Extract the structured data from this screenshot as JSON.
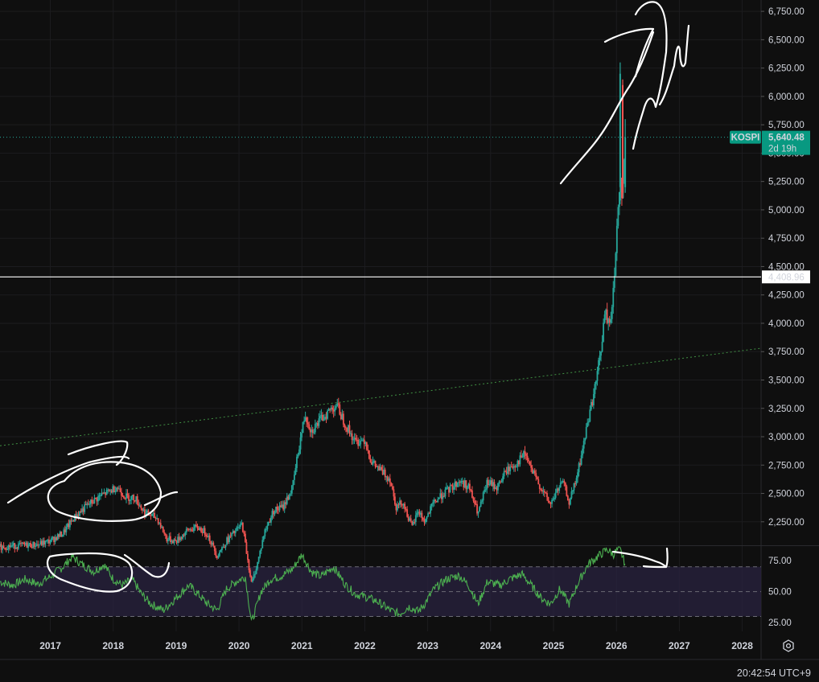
{
  "chart_data": {
    "type": "candlestick",
    "symbol": "KOSPI",
    "last_price": "5,640.48",
    "countdown": "2d 19h",
    "horizontal_line_label": "4,408.96",
    "horizontal_line_value": 4408.96,
    "ylim": [
      2050,
      6850
    ],
    "y_ticks": [
      "6,750.00",
      "6,500.00",
      "6,250.00",
      "6,000.00",
      "5,750.00",
      "5,500.00",
      "5,250.00",
      "5,000.00",
      "4,750.00",
      "4,500.00",
      "4,250.00",
      "4,000.00",
      "3,750.00",
      "3,500.00",
      "3,250.00",
      "3,000.00",
      "2,750.00",
      "2,500.00",
      "2,250.00"
    ],
    "x_ticks": [
      "2017",
      "2018",
      "2019",
      "2020",
      "2021",
      "2022",
      "2023",
      "2024",
      "2025",
      "2026",
      "2027",
      "2028"
    ],
    "trendline": [
      [
        2016.2,
        2920
      ],
      [
        2028.3,
        3780
      ]
    ],
    "price_path": [
      [
        2016.2,
        2030
      ],
      [
        2016.5,
        2040
      ],
      [
        2016.8,
        2050
      ],
      [
        2017.0,
        2080
      ],
      [
        2017.2,
        2150
      ],
      [
        2017.4,
        2300
      ],
      [
        2017.6,
        2400
      ],
      [
        2017.8,
        2480
      ],
      [
        2017.95,
        2520
      ],
      [
        2018.05,
        2560
      ],
      [
        2018.2,
        2470
      ],
      [
        2018.35,
        2460
      ],
      [
        2018.5,
        2330
      ],
      [
        2018.7,
        2280
      ],
      [
        2018.85,
        2100
      ],
      [
        2019.0,
        2080
      ],
      [
        2019.2,
        2180
      ],
      [
        2019.35,
        2200
      ],
      [
        2019.5,
        2140
      ],
      [
        2019.65,
        1950
      ],
      [
        2019.8,
        2080
      ],
      [
        2019.95,
        2170
      ],
      [
        2020.05,
        2230
      ],
      [
        2020.2,
        1700
      ],
      [
        2020.3,
        1900
      ],
      [
        2020.4,
        2150
      ],
      [
        2020.55,
        2350
      ],
      [
        2020.7,
        2380
      ],
      [
        2020.85,
        2550
      ],
      [
        2020.95,
        2900
      ],
      [
        2021.05,
        3200
      ],
      [
        2021.15,
        3050
      ],
      [
        2021.3,
        3150
      ],
      [
        2021.45,
        3240
      ],
      [
        2021.55,
        3280
      ],
      [
        2021.7,
        3100
      ],
      [
        2021.85,
        2950
      ],
      [
        2022.0,
        2980
      ],
      [
        2022.1,
        2780
      ],
      [
        2022.25,
        2700
      ],
      [
        2022.4,
        2630
      ],
      [
        2022.5,
        2380
      ],
      [
        2022.6,
        2430
      ],
      [
        2022.75,
        2200
      ],
      [
        2022.85,
        2350
      ],
      [
        2022.95,
        2250
      ],
      [
        2023.1,
        2420
      ],
      [
        2023.25,
        2500
      ],
      [
        2023.4,
        2560
      ],
      [
        2023.5,
        2610
      ],
      [
        2023.65,
        2560
      ],
      [
        2023.8,
        2320
      ],
      [
        2023.95,
        2600
      ],
      [
        2024.1,
        2550
      ],
      [
        2024.25,
        2700
      ],
      [
        2024.4,
        2760
      ],
      [
        2024.55,
        2850
      ],
      [
        2024.65,
        2700
      ],
      [
        2024.8,
        2550
      ],
      [
        2024.95,
        2400
      ],
      [
        2025.05,
        2520
      ],
      [
        2025.15,
        2600
      ],
      [
        2025.25,
        2420
      ],
      [
        2025.35,
        2600
      ],
      [
        2025.45,
        2850
      ],
      [
        2025.55,
        3150
      ],
      [
        2025.65,
        3400
      ],
      [
        2025.75,
        3750
      ],
      [
        2025.82,
        4100
      ],
      [
        2025.88,
        3980
      ],
      [
        2025.93,
        4150
      ],
      [
        2025.97,
        4400
      ],
      [
        2026.02,
        5000
      ],
      [
        2026.06,
        5300
      ],
      [
        2026.1,
        5100
      ],
      [
        2026.14,
        5640
      ]
    ],
    "rsi": {
      "ylim": [
        18,
        86
      ],
      "upper_band": 70,
      "lower_band": 30,
      "mid_line": 50,
      "ticks": [
        "75.00",
        "50.00",
        "25.00"
      ],
      "path": [
        [
          2016.2,
          58
        ],
        [
          2016.4,
          55
        ],
        [
          2016.6,
          60
        ],
        [
          2016.8,
          56
        ],
        [
          2017.0,
          62
        ],
        [
          2017.2,
          70
        ],
        [
          2017.35,
          78
        ],
        [
          2017.5,
          72
        ],
        [
          2017.7,
          66
        ],
        [
          2017.85,
          72
        ],
        [
          2018.0,
          60
        ],
        [
          2018.15,
          55
        ],
        [
          2018.3,
          60
        ],
        [
          2018.45,
          48
        ],
        [
          2018.6,
          40
        ],
        [
          2018.8,
          35
        ],
        [
          2019.0,
          45
        ],
        [
          2019.2,
          55
        ],
        [
          2019.35,
          48
        ],
        [
          2019.5,
          40
        ],
        [
          2019.65,
          35
        ],
        [
          2019.8,
          52
        ],
        [
          2019.95,
          58
        ],
        [
          2020.1,
          62
        ],
        [
          2020.2,
          25
        ],
        [
          2020.35,
          50
        ],
        [
          2020.5,
          60
        ],
        [
          2020.65,
          62
        ],
        [
          2020.85,
          68
        ],
        [
          2021.0,
          80
        ],
        [
          2021.15,
          66
        ],
        [
          2021.3,
          62
        ],
        [
          2021.5,
          70
        ],
        [
          2021.7,
          55
        ],
        [
          2021.85,
          48
        ],
        [
          2022.0,
          46
        ],
        [
          2022.2,
          42
        ],
        [
          2022.4,
          35
        ],
        [
          2022.55,
          32
        ],
        [
          2022.7,
          38
        ],
        [
          2022.85,
          34
        ],
        [
          2022.95,
          40
        ],
        [
          2023.1,
          52
        ],
        [
          2023.3,
          60
        ],
        [
          2023.5,
          63
        ],
        [
          2023.65,
          55
        ],
        [
          2023.8,
          40
        ],
        [
          2023.95,
          58
        ],
        [
          2024.15,
          55
        ],
        [
          2024.3,
          60
        ],
        [
          2024.5,
          64
        ],
        [
          2024.6,
          58
        ],
        [
          2024.8,
          45
        ],
        [
          2024.95,
          40
        ],
        [
          2025.1,
          52
        ],
        [
          2025.25,
          40
        ],
        [
          2025.4,
          58
        ],
        [
          2025.55,
          72
        ],
        [
          2025.7,
          78
        ],
        [
          2025.85,
          84
        ],
        [
          2025.95,
          80
        ],
        [
          2026.05,
          85
        ],
        [
          2026.14,
          72
        ]
      ]
    }
  },
  "status": {
    "clock": "20:42:54 UTC+9"
  },
  "colors": {
    "background": "#0f0f0f",
    "up": "#26a69a",
    "down": "#ef5350",
    "rsi_line": "#4caf50",
    "rsi_band": "#2a2340",
    "trendline": "#4caf50",
    "label_bg": "#089981",
    "hline": "#ffffff"
  }
}
